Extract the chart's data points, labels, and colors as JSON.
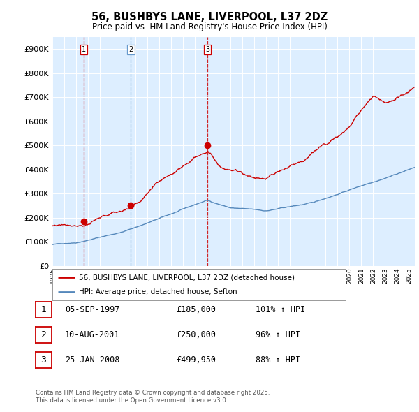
{
  "title": "56, BUSHBYS LANE, LIVERPOOL, L37 2DZ",
  "subtitle": "Price paid vs. HM Land Registry's House Price Index (HPI)",
  "legend_label_red": "56, BUSHBYS LANE, LIVERPOOL, L37 2DZ (detached house)",
  "legend_label_blue": "HPI: Average price, detached house, Sefton",
  "footer_line1": "Contains HM Land Registry data © Crown copyright and database right 2025.",
  "footer_line2": "This data is licensed under the Open Government Licence v3.0.",
  "transactions": [
    {
      "num": 1,
      "date": "05-SEP-1997",
      "price": "£185,000",
      "hpi": "101% ↑ HPI",
      "year": 1997.67
    },
    {
      "num": 2,
      "date": "10-AUG-2001",
      "price": "£250,000",
      "hpi": "96% ↑ HPI",
      "year": 2001.61
    },
    {
      "num": 3,
      "date": "25-JAN-2008",
      "price": "£499,950",
      "hpi": "88% ↑ HPI",
      "year": 2008.07
    }
  ],
  "transaction_prices": [
    185000,
    250000,
    499950
  ],
  "vline_styles": [
    "red_dashed",
    "blue_dashed",
    "red_dashed"
  ],
  "vline_colors": [
    "#cc0000",
    "#6699cc",
    "#cc0000"
  ],
  "ylim": [
    0,
    950000
  ],
  "yticks": [
    0,
    100000,
    200000,
    300000,
    400000,
    500000,
    600000,
    700000,
    800000,
    900000
  ],
  "xlim_start": 1995.0,
  "xlim_end": 2025.5,
  "red_color": "#cc0000",
  "blue_color": "#5588bb",
  "chart_bg_color": "#ddeeff",
  "grid_color": "#ffffff",
  "background_color": "#ffffff"
}
